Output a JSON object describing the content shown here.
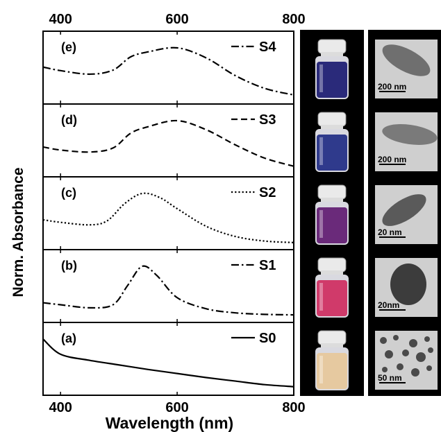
{
  "chart_data": {
    "type": "line",
    "xlabel": "Wavelength (nm)",
    "ylabel": "Norm. Absorbance",
    "xlim": [
      370,
      800
    ],
    "x_ticks": [
      "400",
      "600",
      "800"
    ],
    "y_ticks": [],
    "grid": false,
    "panels": [
      {
        "panel_label": "(e)",
        "series_name": "S4",
        "line_style": "dash-dot",
        "x": [
          370,
          400,
          450,
          490,
          520,
          550,
          600,
          650,
          700,
          750,
          800
        ],
        "y": [
          0.62,
          0.55,
          0.48,
          0.56,
          0.82,
          0.92,
          1.0,
          0.8,
          0.45,
          0.2,
          0.07
        ]
      },
      {
        "panel_label": "(d)",
        "series_name": "S3",
        "line_style": "dash",
        "x": [
          370,
          400,
          450,
          490,
          520,
          550,
          600,
          650,
          700,
          750,
          800
        ],
        "y": [
          0.48,
          0.42,
          0.38,
          0.46,
          0.75,
          0.88,
          1.0,
          0.82,
          0.52,
          0.26,
          0.1
        ]
      },
      {
        "panel_label": "(c)",
        "series_name": "S2",
        "line_style": "dot",
        "x": [
          370,
          400,
          450,
          480,
          510,
          540,
          570,
          600,
          650,
          700,
          750,
          800
        ],
        "y": [
          0.48,
          0.43,
          0.38,
          0.46,
          0.8,
          1.0,
          0.92,
          0.7,
          0.35,
          0.15,
          0.06,
          0.03
        ]
      },
      {
        "panel_label": "(b)",
        "series_name": "S1",
        "line_style": "dash-dot",
        "x": [
          370,
          400,
          450,
          490,
          515,
          540,
          565,
          600,
          650,
          700,
          750,
          800
        ],
        "y": [
          0.28,
          0.24,
          0.18,
          0.24,
          0.62,
          1.0,
          0.82,
          0.38,
          0.16,
          0.08,
          0.05,
          0.04
        ]
      },
      {
        "panel_label": "(a)",
        "series_name": "S0",
        "line_style": "solid",
        "x": [
          370,
          400,
          450,
          500,
          550,
          600,
          650,
          700,
          750,
          800
        ],
        "y": [
          1.0,
          0.7,
          0.58,
          0.49,
          0.4,
          0.32,
          0.24,
          0.17,
          0.1,
          0.06
        ]
      }
    ]
  },
  "images": {
    "vials": [
      {
        "sample": "S4",
        "liquid_color": "#2a2a7a"
      },
      {
        "sample": "S3",
        "liquid_color": "#2f3a8c"
      },
      {
        "sample": "S2",
        "liquid_color": "#6a2a7a"
      },
      {
        "sample": "S1",
        "liquid_color": "#d03a6a"
      },
      {
        "sample": "S0",
        "liquid_color": "#e6c9a0"
      }
    ],
    "tem": [
      {
        "sample": "S4",
        "scale_bar": "200 nm"
      },
      {
        "sample": "S3",
        "scale_bar": "200 nm"
      },
      {
        "sample": "S2",
        "scale_bar": "20 nm"
      },
      {
        "sample": "S1",
        "scale_bar": "20nm"
      },
      {
        "sample": "S0",
        "scale_bar": "50 nm"
      }
    ]
  }
}
